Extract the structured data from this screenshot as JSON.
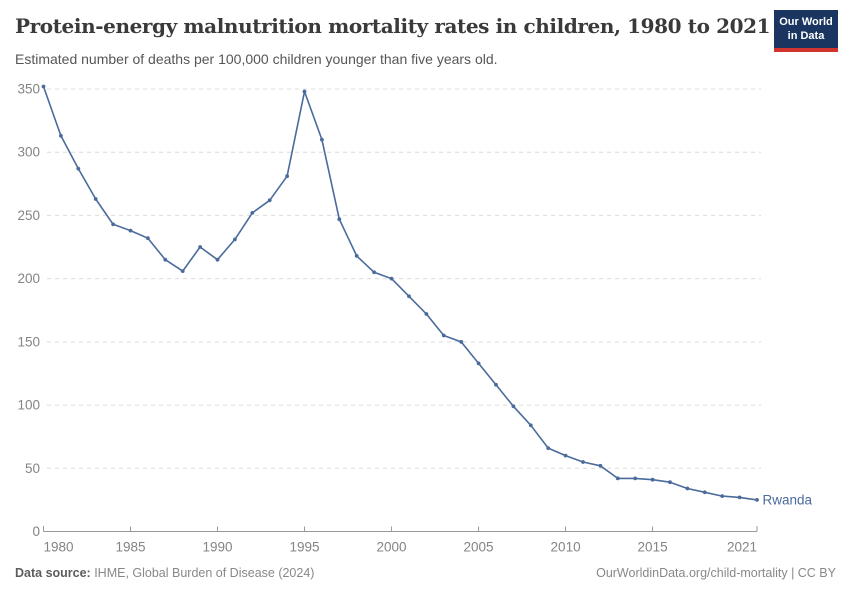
{
  "header": {
    "title": "Protein-energy malnutrition mortality rates in children, 1980 to 2021",
    "subtitle": "Estimated number of deaths per 100,000 children younger than five years old.",
    "logo": {
      "line1": "Our World",
      "line2": "in Data",
      "bg_color": "#1b3561",
      "accent_color": "#d0342c"
    }
  },
  "footer": {
    "source_label": "Data source:",
    "source_text": " IHME, Global Burden of Disease (2024)",
    "credit": "OurWorldinData.org/child-mortality | CC BY"
  },
  "chart_data": {
    "type": "line",
    "title": "Protein-energy malnutrition mortality rates in children, 1980 to 2021",
    "subtitle": "Estimated number of deaths per 100,000 children younger than five years old.",
    "xlabel": "",
    "ylabel": "",
    "xlim": [
      1980,
      2021
    ],
    "ylim": [
      0,
      350
    ],
    "x_ticks": [
      1980,
      1985,
      1990,
      1995,
      2000,
      2005,
      2010,
      2015,
      2021
    ],
    "y_ticks": [
      0,
      50,
      100,
      150,
      200,
      250,
      300,
      350
    ],
    "grid": "dashed-horizontal",
    "legend_position": "end-of-line-label",
    "x": [
      1980,
      1981,
      1982,
      1983,
      1984,
      1985,
      1986,
      1987,
      1988,
      1989,
      1990,
      1991,
      1992,
      1993,
      1994,
      1995,
      1996,
      1997,
      1998,
      1999,
      2000,
      2001,
      2002,
      2003,
      2004,
      2005,
      2006,
      2007,
      2008,
      2009,
      2010,
      2011,
      2012,
      2013,
      2014,
      2015,
      2016,
      2017,
      2018,
      2019,
      2020,
      2021
    ],
    "series": [
      {
        "name": "Rwanda",
        "color": "#4a6b9c",
        "values": [
          352,
          313,
          287,
          263,
          243,
          238,
          232,
          215,
          206,
          225,
          215,
          231,
          252,
          262,
          281,
          348,
          310,
          247,
          218,
          205,
          200,
          186,
          172,
          155,
          150,
          133,
          116,
          99,
          84,
          66,
          60,
          55,
          52,
          42,
          42,
          41,
          39,
          34,
          31,
          28,
          27,
          25
        ]
      }
    ],
    "colors": {
      "grid_color": "#dcdcdc",
      "axis_color": "#999999",
      "tick_label_color": "#848484",
      "line_color": "#4a6b9c"
    }
  }
}
